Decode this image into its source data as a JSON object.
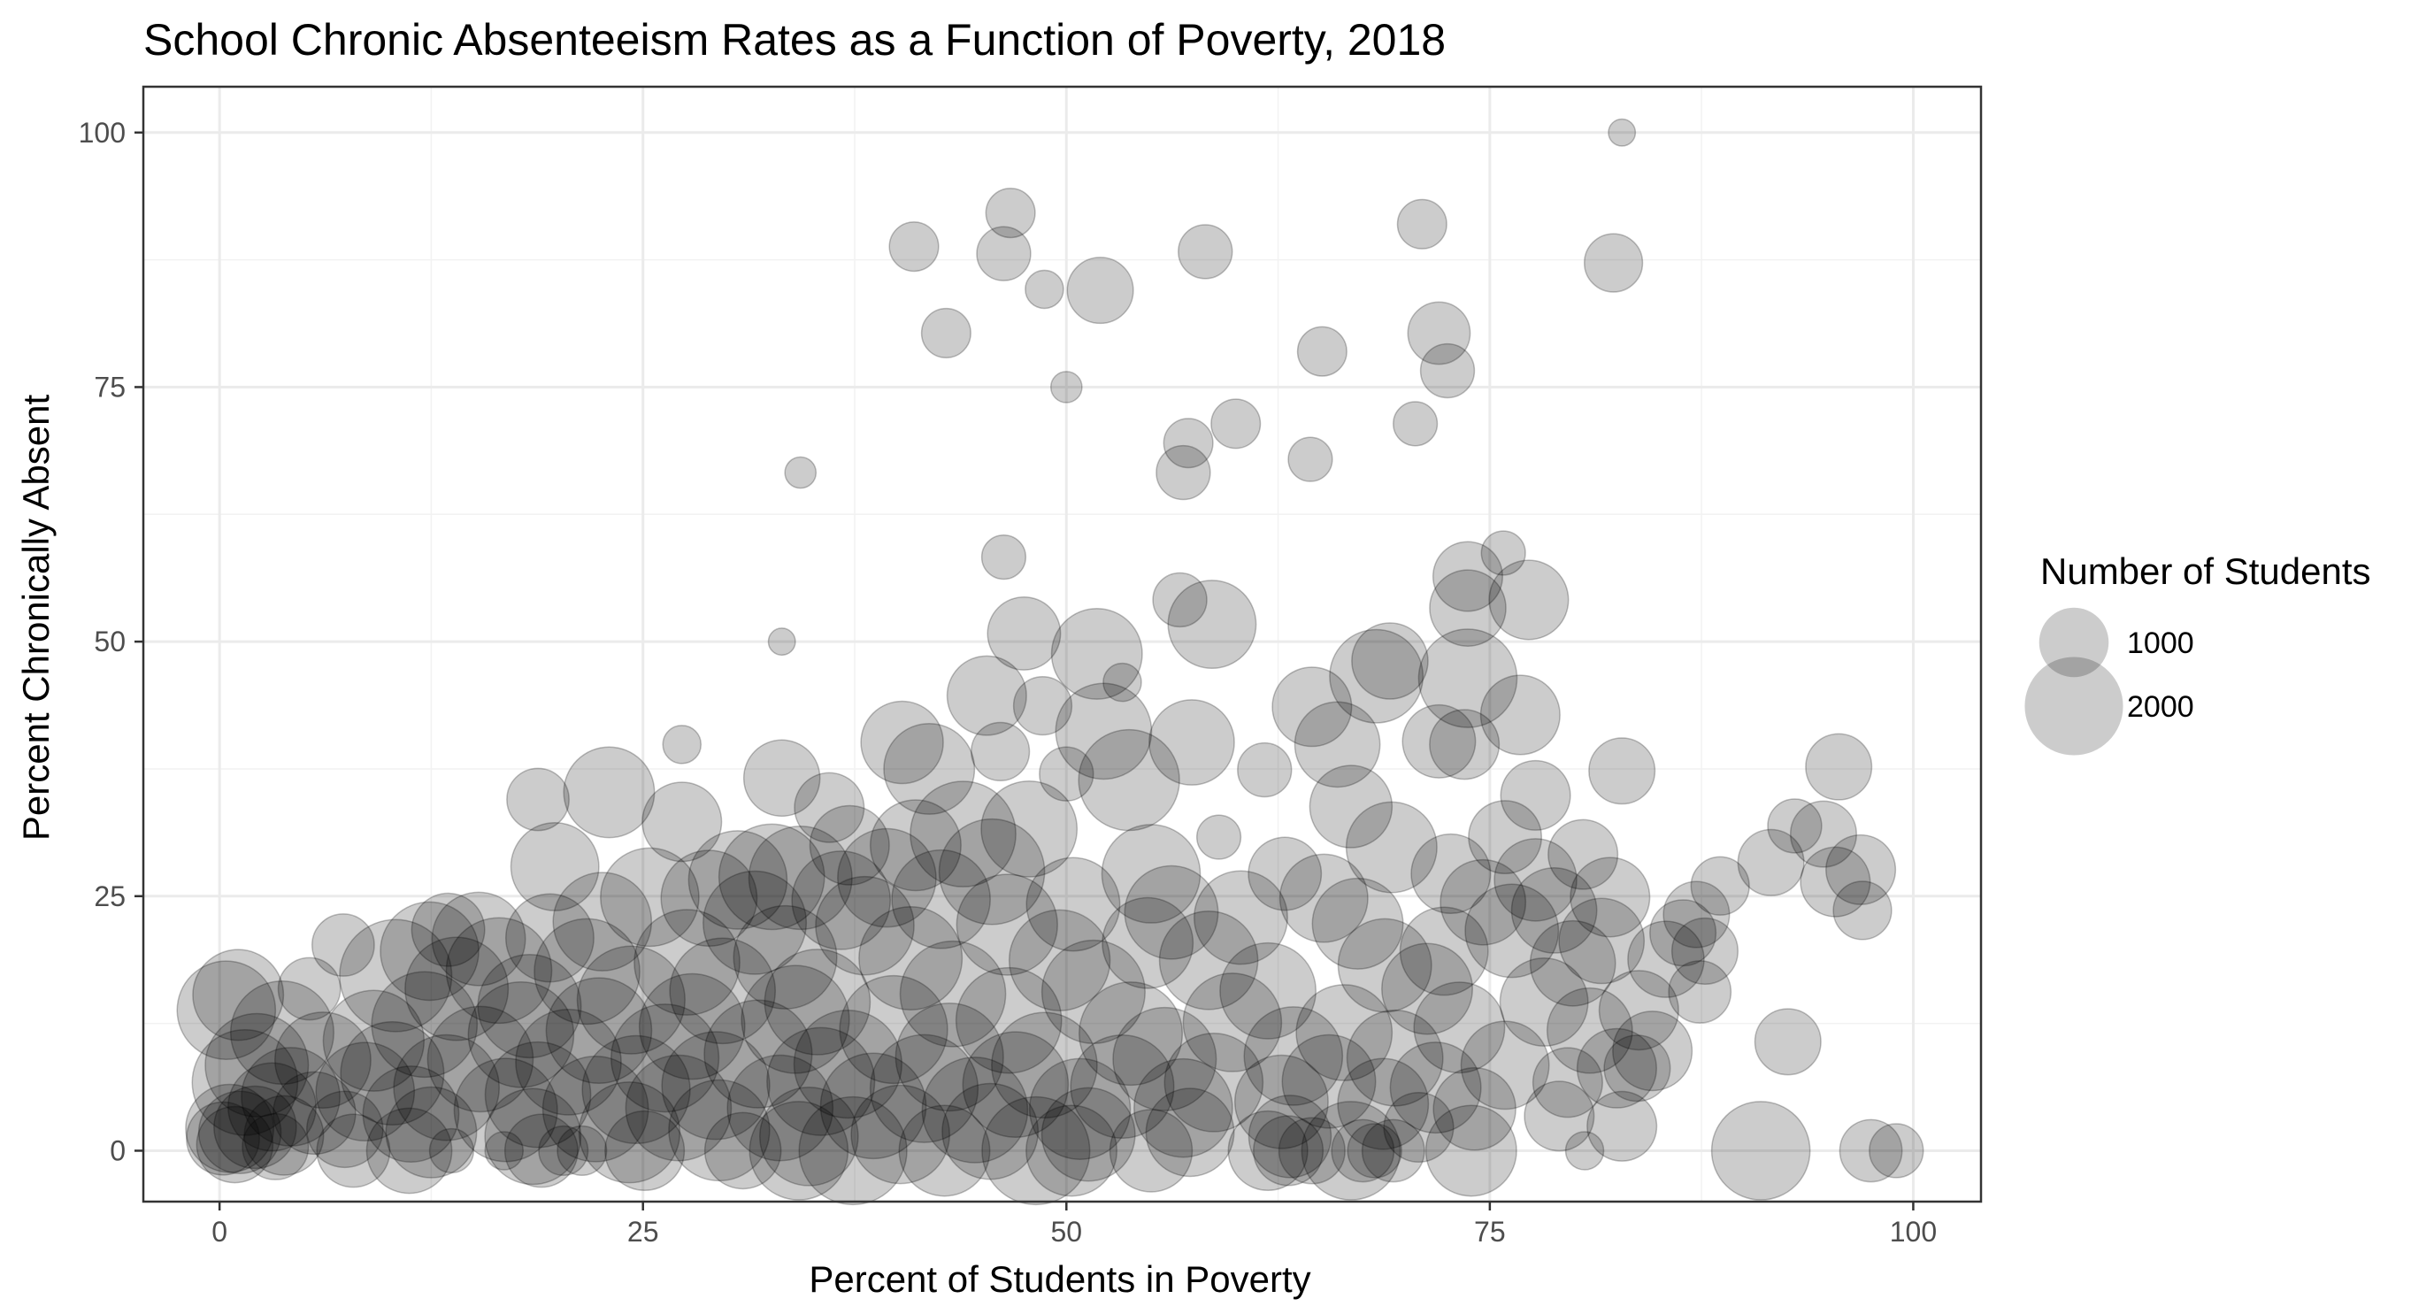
{
  "chart_data": {
    "type": "scatter",
    "title": "School Chronic Absenteeism Rates as a Function of Poverty, 2018",
    "xlabel": "Percent of Students in Poverty",
    "ylabel": "Percent Chronically Absent",
    "xlim": [
      -4.5,
      104
    ],
    "ylim": [
      -5,
      104.5
    ],
    "x_ticks": [
      0,
      25,
      50,
      75,
      100
    ],
    "y_ticks": [
      0,
      25,
      50,
      75,
      100
    ],
    "grid": true,
    "size_legend": {
      "title": "Number of Students",
      "entries": [
        {
          "label": "1000",
          "value": 1000
        },
        {
          "label": "2000",
          "value": 2000
        }
      ]
    },
    "point_color": "#000000",
    "point_alpha": 0.2,
    "points_note": "Representative sample of visible schools: [x, y, students]",
    "points": [
      [
        82.8,
        100,
        150
      ],
      [
        46.7,
        92.1,
        500
      ],
      [
        71,
        91,
        500
      ],
      [
        41,
        88.8,
        500
      ],
      [
        46.3,
        88.1,
        600
      ],
      [
        58.2,
        88.3,
        600
      ],
      [
        48.7,
        84.6,
        300
      ],
      [
        52,
        84.5,
        900
      ],
      [
        82.3,
        87.2,
        700
      ],
      [
        42.9,
        80.3,
        500
      ],
      [
        72,
        80.3,
        800
      ],
      [
        72.5,
        76.6,
        600
      ],
      [
        65.1,
        78.5,
        500
      ],
      [
        50,
        75,
        200
      ],
      [
        60,
        71.4,
        500
      ],
      [
        57.2,
        69.5,
        500
      ],
      [
        70.6,
        71.4,
        400
      ],
      [
        64.4,
        67.9,
        400
      ],
      [
        56.9,
        66.6,
        600
      ],
      [
        34.3,
        66.6,
        200
      ],
      [
        46.3,
        58.3,
        400
      ],
      [
        75.8,
        58.7,
        400
      ],
      [
        73.7,
        56.4,
        1000
      ],
      [
        56.7,
        54.1,
        600
      ],
      [
        73.7,
        53.3,
        1200
      ],
      [
        77.3,
        54.1,
        1300
      ],
      [
        58.6,
        51.7,
        1600
      ],
      [
        47.5,
        50.8,
        1100
      ],
      [
        33.2,
        50,
        150
      ],
      [
        51.8,
        48.8,
        1700
      ],
      [
        73.7,
        46.4,
        2000
      ],
      [
        68.3,
        46.6,
        1800
      ],
      [
        69.1,
        48.1,
        1200
      ],
      [
        76.8,
        42.8,
        1300
      ],
      [
        45.3,
        44.7,
        1300
      ],
      [
        64.5,
        43.6,
        1300
      ],
      [
        48.6,
        43.7,
        700
      ],
      [
        53.3,
        46,
        300
      ],
      [
        57.4,
        40.1,
        1500
      ],
      [
        52.2,
        41.2,
        1900
      ],
      [
        40.3,
        40.1,
        1400
      ],
      [
        66,
        39.9,
        1500
      ],
      [
        72,
        40.2,
        1100
      ],
      [
        73.5,
        39.9,
        1000
      ],
      [
        27.3,
        39.9,
        300
      ],
      [
        41.9,
        37.5,
        1700
      ],
      [
        46.1,
        39.2,
        700
      ],
      [
        53.7,
        36.4,
        2100
      ],
      [
        61.7,
        37.4,
        600
      ],
      [
        50,
        37,
        600
      ],
      [
        82.8,
        37.3,
        900
      ],
      [
        95.6,
        37.7,
        900
      ],
      [
        23,
        35.2,
        1700
      ],
      [
        33.2,
        36.6,
        1200
      ],
      [
        18.8,
        34.5,
        800
      ],
      [
        36,
        33.7,
        1000
      ],
      [
        43.9,
        31.1,
        2300
      ],
      [
        47.8,
        31.6,
        1900
      ],
      [
        66.8,
        33.8,
        1400
      ],
      [
        77.7,
        34.9,
        1000
      ],
      [
        93,
        31.9,
        600
      ],
      [
        94.7,
        31.1,
        900
      ],
      [
        27.3,
        32.3,
        1300
      ],
      [
        37.2,
        30,
        1300
      ],
      [
        41.1,
        30,
        1700
      ],
      [
        59,
        30.8,
        400
      ],
      [
        69.2,
        29.8,
        1700
      ],
      [
        75.9,
        30.8,
        1100
      ],
      [
        80.5,
        29.1,
        1000
      ],
      [
        91.6,
        28.3,
        900
      ],
      [
        45.6,
        27.4,
        2300
      ],
      [
        30.6,
        26.6,
        2000
      ],
      [
        32.6,
        26.9,
        2300
      ],
      [
        34.3,
        26.8,
        2200
      ],
      [
        39.4,
        26.8,
        2000
      ],
      [
        55,
        27.2,
        2000
      ],
      [
        62.9,
        27.2,
        1100
      ],
      [
        72.7,
        27.2,
        1300
      ],
      [
        77.7,
        26.6,
        1400
      ],
      [
        96.9,
        27.6,
        1000
      ],
      [
        19.8,
        27.9,
        1600
      ],
      [
        88.6,
        26,
        700
      ],
      [
        95.4,
        26.4,
        1000
      ],
      [
        25.4,
        24.9,
        2000
      ],
      [
        28.9,
        24.8,
        1900
      ],
      [
        36.7,
        24.6,
        2000
      ],
      [
        42.6,
        24.7,
        2000
      ],
      [
        50.4,
        24.2,
        1800
      ],
      [
        56.2,
        23.4,
        1800
      ],
      [
        65.2,
        24.8,
        1600
      ],
      [
        74.6,
        24.4,
        1500
      ],
      [
        78.8,
        23.6,
        1500
      ],
      [
        82.1,
        24.9,
        1300
      ],
      [
        97,
        23.6,
        700
      ],
      [
        13.5,
        21.7,
        1100
      ],
      [
        15.3,
        20.8,
        1800
      ],
      [
        19.5,
        20.9,
        1600
      ],
      [
        22.6,
        22.5,
        2000
      ],
      [
        31.6,
        22.4,
        2200
      ],
      [
        38.1,
        22.1,
        2000
      ],
      [
        46.5,
        22.2,
        2100
      ],
      [
        54.8,
        20.4,
        1700
      ],
      [
        60.3,
        22.9,
        1800
      ],
      [
        67.2,
        22.3,
        1700
      ],
      [
        76.3,
        21.6,
        1800
      ],
      [
        81.6,
        20.6,
        1500
      ],
      [
        87.2,
        23.2,
        900
      ],
      [
        86.4,
        21.4,
        900
      ],
      [
        7.3,
        20.2,
        800
      ],
      [
        12.4,
        19.6,
        2000
      ],
      [
        16.5,
        17.7,
        2300
      ],
      [
        10.4,
        17.2,
        2600
      ],
      [
        21.7,
        17.6,
        2300
      ],
      [
        27.6,
        18.5,
        2300
      ],
      [
        33.4,
        19,
        2200
      ],
      [
        40.8,
        18.9,
        2200
      ],
      [
        49.6,
        18.7,
        2100
      ],
      [
        58.4,
        18.7,
        2000
      ],
      [
        68.8,
        18.2,
        1800
      ],
      [
        72.3,
        19.6,
        1600
      ],
      [
        79.9,
        18.4,
        1500
      ],
      [
        85.4,
        18.8,
        1200
      ],
      [
        87.7,
        19.6,
        900
      ],
      [
        5.3,
        15.9,
        800
      ],
      [
        1.1,
        15.3,
        1700
      ],
      [
        0.4,
        13.8,
        2000
      ],
      [
        14,
        15.9,
        2200
      ],
      [
        18.3,
        14.2,
        2200
      ],
      [
        24.3,
        14.8,
        2400
      ],
      [
        29.7,
        15.7,
        2300
      ],
      [
        35.3,
        14.6,
        2300
      ],
      [
        43.3,
        15.4,
        2300
      ],
      [
        51.6,
        15.6,
        2200
      ],
      [
        61.9,
        15.7,
        1900
      ],
      [
        71.3,
        15.9,
        1700
      ],
      [
        78.2,
        14.6,
        1600
      ],
      [
        83.8,
        13.8,
        1300
      ],
      [
        87.4,
        15.6,
        800
      ],
      [
        3.7,
        11.6,
        2200
      ],
      [
        9.1,
        10.8,
        2100
      ],
      [
        12.1,
        12.4,
        2300
      ],
      [
        17.8,
        11.4,
        2300
      ],
      [
        22.4,
        11.8,
        2300
      ],
      [
        27.9,
        12.2,
        2300
      ],
      [
        34,
        12.9,
        2400
      ],
      [
        39.8,
        11.9,
        2400
      ],
      [
        46.6,
        12.8,
        2300
      ],
      [
        53.8,
        11.5,
        2200
      ],
      [
        59.8,
        12.6,
        2000
      ],
      [
        66.4,
        11.6,
        1900
      ],
      [
        73.2,
        12.1,
        1700
      ],
      [
        80.9,
        11.8,
        1500
      ],
      [
        84.6,
        9.8,
        1300
      ],
      [
        92.6,
        10.7,
        900
      ],
      [
        2.2,
        8.4,
        2200
      ],
      [
        6.1,
        8.9,
        1900
      ],
      [
        10.2,
        7.6,
        2200
      ],
      [
        15.4,
        9,
        2300
      ],
      [
        20.6,
        8.7,
        2300
      ],
      [
        26.3,
        9.1,
        2400
      ],
      [
        31.8,
        9.5,
        2400
      ],
      [
        37.1,
        8.5,
        2400
      ],
      [
        43.1,
        9.2,
        2400
      ],
      [
        48.7,
        8.4,
        2300
      ],
      [
        55.8,
        9,
        2200
      ],
      [
        63.4,
        9.3,
        2000
      ],
      [
        69.4,
        9.1,
        1900
      ],
      [
        75.9,
        8.4,
        1600
      ],
      [
        82.5,
        8.1,
        1300
      ],
      [
        83.7,
        8.1,
        900
      ],
      [
        1.5,
        6.7,
        2300
      ],
      [
        4.2,
        5.3,
        2000
      ],
      [
        8.6,
        5.8,
        2000
      ],
      [
        13.4,
        6.2,
        2300
      ],
      [
        18.8,
        5.5,
        2300
      ],
      [
        24.6,
        6,
        2400
      ],
      [
        29.3,
        6.4,
        2400
      ],
      [
        35.5,
        6.8,
        2400
      ],
      [
        41.6,
        6.1,
        2400
      ],
      [
        47,
        6.5,
        2300
      ],
      [
        53.3,
        6.3,
        2200
      ],
      [
        58.7,
        6.7,
        2000
      ],
      [
        65.5,
        6.8,
        1800
      ],
      [
        71.8,
        6.2,
        1700
      ],
      [
        79.6,
        6.7,
        1000
      ],
      [
        3.1,
        4.3,
        1600
      ],
      [
        5.6,
        3.7,
        1400
      ],
      [
        11.3,
        3.6,
        1900
      ],
      [
        16.9,
        4,
        2200
      ],
      [
        22.2,
        4.1,
        2300
      ],
      [
        27.1,
        4.2,
        2300
      ],
      [
        33.1,
        4.2,
        2300
      ],
      [
        38.6,
        4.4,
        2300
      ],
      [
        44.6,
        4,
        2300
      ],
      [
        50.8,
        4.1,
        2100
      ],
      [
        56.9,
        4.2,
        2000
      ],
      [
        62.7,
        4.8,
        1800
      ],
      [
        68.7,
        4.6,
        1700
      ],
      [
        74.1,
        4.1,
        1400
      ],
      [
        79.1,
        3.4,
        1000
      ],
      [
        0.6,
        2.2,
        1600
      ],
      [
        1.2,
        1.8,
        1400
      ],
      [
        2.1,
        2.3,
        1400
      ],
      [
        3.8,
        1.5,
        1300
      ],
      [
        7.4,
        2.1,
        1200
      ],
      [
        12.5,
        1.8,
        1700
      ],
      [
        18.5,
        1.4,
        1900
      ],
      [
        24.2,
        1.8,
        2100
      ],
      [
        29.5,
        2,
        2100
      ],
      [
        34.8,
        1.4,
        2000
      ],
      [
        40.2,
        1.6,
        2000
      ],
      [
        45.5,
        1.9,
        1900
      ],
      [
        51.3,
        1.6,
        1800
      ],
      [
        57.3,
        1.8,
        1600
      ],
      [
        63.2,
        1.4,
        1400
      ],
      [
        70.8,
        2.3,
        1000
      ],
      [
        82.8,
        2.4,
        1000
      ],
      [
        0.2,
        1.2,
        1100
      ],
      [
        0.9,
        0.6,
        1200
      ],
      [
        3.3,
        0.4,
        900
      ],
      [
        7.9,
        0,
        1100
      ],
      [
        11.2,
        0,
        1500
      ],
      [
        19,
        0,
        1100
      ],
      [
        25.1,
        0,
        1300
      ],
      [
        30.9,
        0,
        1200
      ],
      [
        34.2,
        0,
        2000
      ],
      [
        37.4,
        0,
        2400
      ],
      [
        42.8,
        0,
        1700
      ],
      [
        48.2,
        0,
        2400
      ],
      [
        50.3,
        0,
        1700
      ],
      [
        55,
        0,
        1400
      ],
      [
        61.9,
        0,
        1300
      ],
      [
        63.1,
        0,
        1000
      ],
      [
        64.5,
        0,
        900
      ],
      [
        66.8,
        0,
        2000
      ],
      [
        67.5,
        0,
        800
      ],
      [
        68.2,
        0,
        600
      ],
      [
        69.3,
        0,
        800
      ],
      [
        73.9,
        0,
        1700
      ],
      [
        80.6,
        0,
        300
      ],
      [
        91,
        0,
        2000
      ],
      [
        97.5,
        0,
        800
      ],
      [
        99,
        0,
        600
      ],
      [
        13.7,
        0,
        400
      ],
      [
        16.8,
        0,
        300
      ],
      [
        20.3,
        0,
        500
      ],
      [
        21.4,
        0,
        500
      ]
    ]
  }
}
